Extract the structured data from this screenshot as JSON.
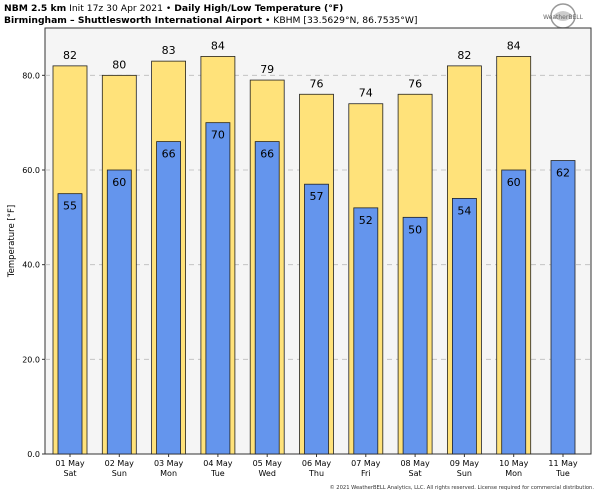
{
  "header": {
    "model": "NBM 2.5 km",
    "init": "Init 17z 30 Apr 2021",
    "bullet": "•",
    "product": "Daily High/Low Temperature (°F)",
    "station": "Birmingham – Shuttlesworth International Airport",
    "station_id": "KBHM [33.5629°N, 86.7535°W]"
  },
  "logo": {
    "text": "WeatherBELL"
  },
  "footer": {
    "text": "© 2021 WeatherBELL Analytics, LLC. All rights reserved. License required for commercial distribution."
  },
  "chart_data": {
    "type": "bar",
    "ylabel": "Temperature [°F]",
    "ylim": [
      0,
      90
    ],
    "yticks": [
      0,
      20,
      40,
      60,
      80
    ],
    "ytick_labels": [
      "0.0",
      "20.0",
      "40.0",
      "60.0",
      "80.0"
    ],
    "grid": true,
    "categories": [
      "01 May",
      "02 May",
      "03 May",
      "04 May",
      "05 May",
      "06 May",
      "07 May",
      "08 May",
      "09 May",
      "10 May",
      "11 May"
    ],
    "days": [
      "Sat",
      "Sun",
      "Mon",
      "Tue",
      "Wed",
      "Thu",
      "Fri",
      "Sat",
      "Sun",
      "Mon",
      "Tue"
    ],
    "series": [
      {
        "values": [
          82,
          80,
          83,
          84,
          79,
          76,
          74,
          76,
          82,
          84,
          null
        ],
        "color": "#ffe27a"
      },
      {
        "values": [
          55,
          60,
          66,
          70,
          66,
          57,
          52,
          50,
          54,
          60,
          62
        ],
        "color": "#6495ed"
      }
    ]
  }
}
